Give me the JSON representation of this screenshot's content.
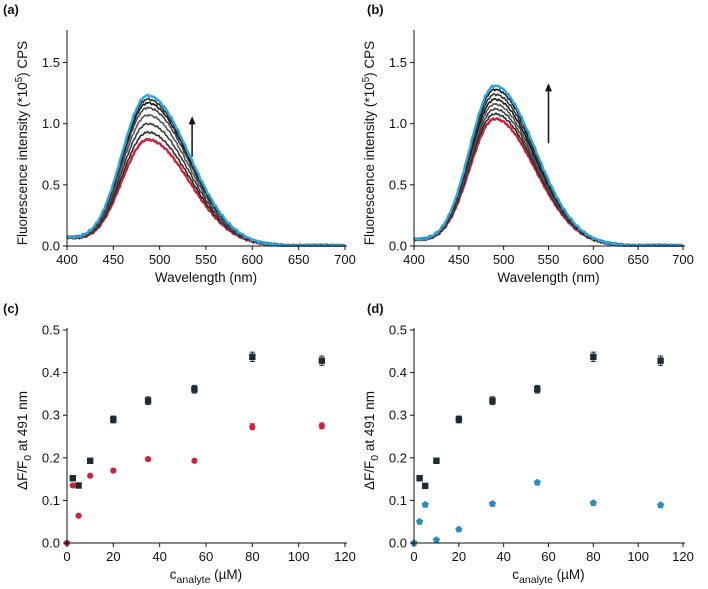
{
  "chart_data": [
    {
      "panel": "(a)",
      "type": "line",
      "xlabel": "Wavelength (nm)",
      "ylabel": "Fluorescence intensity (*10^5) CPS",
      "ylabel_parts": {
        "pre": "Fluorescence intensity (*10",
        "sup": "5",
        "post": ") CPS"
      },
      "xlim": [
        400,
        700
      ],
      "ylim": [
        0,
        1.75
      ],
      "xticks": [
        400,
        450,
        500,
        550,
        600,
        650,
        700
      ],
      "yticks": [
        0.0,
        0.5,
        1.0,
        1.5
      ],
      "ytick_labels": [
        "0.0",
        "0.5",
        "1.0",
        "1.5"
      ],
      "arrow": {
        "x": 535,
        "y_from": 0.73,
        "y_to": 1.06,
        "direction": "up"
      },
      "curve_shape": {
        "peak_x": 487,
        "sigma_left": 28,
        "sigma_right": 45,
        "baseline_400": 0.07,
        "baseline_430": 0.03
      },
      "series": [
        {
          "name": "initial",
          "color": "#d21f3c",
          "peak": 0.87
        },
        {
          "name": "step 1",
          "color": "#2b2b2b",
          "peak": 0.93
        },
        {
          "name": "step 2",
          "color": "#3d3d3d",
          "peak": 1.0
        },
        {
          "name": "step 3",
          "color": "#555555",
          "peak": 1.07
        },
        {
          "name": "step 4",
          "color": "#444444",
          "peak": 1.13
        },
        {
          "name": "step 5",
          "color": "#1a1a1a",
          "peak": 1.17
        },
        {
          "name": "step 6",
          "color": "#2e2e2e",
          "peak": 1.2
        },
        {
          "name": "final",
          "color": "#2aa6de",
          "peak": 1.23
        }
      ]
    },
    {
      "panel": "(b)",
      "type": "line",
      "xlabel": "Wavelength (nm)",
      "ylabel": "Fluorescence intensity (*10^5) CPS",
      "ylabel_parts": {
        "pre": "Fluorescence intensity (*10",
        "sup": "5",
        "post": ") CPS"
      },
      "xlim": [
        400,
        700
      ],
      "ylim": [
        0,
        1.75
      ],
      "xticks": [
        400,
        450,
        500,
        550,
        600,
        650,
        700
      ],
      "yticks": [
        0.0,
        0.5,
        1.0,
        1.5
      ],
      "ytick_labels": [
        "0.0",
        "0.5",
        "1.0",
        "1.5"
      ],
      "arrow": {
        "x": 550,
        "y_from": 0.84,
        "y_to": 1.33,
        "direction": "up"
      },
      "curve_shape": {
        "peak_x": 490,
        "sigma_left": 28,
        "sigma_right": 45,
        "baseline_400": 0.05,
        "baseline_430": 0.03
      },
      "series": [
        {
          "name": "initial",
          "color": "#d21f3c",
          "peak": 1.04
        },
        {
          "name": "step 1",
          "color": "#2b2b2b",
          "peak": 1.08
        },
        {
          "name": "step 2",
          "color": "#444444",
          "peak": 1.12
        },
        {
          "name": "step 3",
          "color": "#555555",
          "peak": 1.16
        },
        {
          "name": "step 4",
          "color": "#1a1a1a",
          "peak": 1.2
        },
        {
          "name": "step 5",
          "color": "#333333",
          "peak": 1.24
        },
        {
          "name": "step 6",
          "color": "#1a1a1a",
          "peak": 1.28
        },
        {
          "name": "final",
          "color": "#2aa6de",
          "peak": 1.31
        }
      ]
    },
    {
      "panel": "(c)",
      "type": "scatter",
      "xlabel": "c_analyte (µM)",
      "xlabel_parts": {
        "pre": "c",
        "sub": "analyte",
        "post": " (µM)"
      },
      "ylabel": "ΔF/F0 at 491 nm",
      "ylabel_parts": {
        "pre": "ΔF/F",
        "sub": "0",
        "post": " at 491 nm"
      },
      "xlim": [
        0,
        120
      ],
      "ylim": [
        0,
        0.5
      ],
      "xticks": [
        0,
        20,
        40,
        60,
        80,
        100,
        120
      ],
      "yticks": [
        0.0,
        0.1,
        0.2,
        0.3,
        0.4,
        0.5
      ],
      "ytick_labels": [
        "0.0",
        "0.1",
        "0.2",
        "0.3",
        "0.4",
        "0.5"
      ],
      "series": [
        {
          "name": "black squares",
          "marker": "square",
          "color": "#1b2a33",
          "x": [
            2.5,
            5,
            10,
            20,
            35,
            55,
            80,
            110
          ],
          "y": [
            0.152,
            0.135,
            0.193,
            0.29,
            0.334,
            0.361,
            0.437,
            0.428
          ],
          "err": [
            0,
            0,
            0,
            0.008,
            0.009,
            0.009,
            0.011,
            0.011
          ]
        },
        {
          "name": "red circles",
          "marker": "circle",
          "color": "#d21f3c",
          "x": [
            0,
            2.5,
            5,
            10,
            20,
            35,
            55,
            80,
            110
          ],
          "y": [
            0.0,
            0.135,
            0.064,
            0.158,
            0.17,
            0.197,
            0.193,
            0.273,
            0.275
          ],
          "err": [
            0,
            0,
            0,
            0,
            0,
            0.004,
            0.004,
            0.007,
            0.007
          ]
        }
      ]
    },
    {
      "panel": "(d)",
      "type": "scatter",
      "xlabel": "c_analyte (µM)",
      "xlabel_parts": {
        "pre": "c",
        "sub": "analyte",
        "post": " (µM)"
      },
      "ylabel": "ΔF/F0 at 491 nm",
      "ylabel_parts": {
        "pre": "ΔF/F",
        "sub": "0",
        "post": " at 491 nm"
      },
      "xlim": [
        0,
        120
      ],
      "ylim": [
        0,
        0.5
      ],
      "xticks": [
        0,
        20,
        40,
        60,
        80,
        100,
        120
      ],
      "yticks": [
        0.0,
        0.1,
        0.2,
        0.3,
        0.4,
        0.5
      ],
      "ytick_labels": [
        "0.0",
        "0.1",
        "0.2",
        "0.3",
        "0.4",
        "0.5"
      ],
      "series": [
        {
          "name": "black squares",
          "marker": "square",
          "color": "#1b2a33",
          "x": [
            2.5,
            5,
            10,
            20,
            35,
            55,
            80,
            110
          ],
          "y": [
            0.152,
            0.134,
            0.193,
            0.29,
            0.334,
            0.361,
            0.437,
            0.428
          ],
          "err": [
            0,
            0,
            0,
            0.008,
            0.009,
            0.009,
            0.011,
            0.011
          ]
        },
        {
          "name": "blue pentagons",
          "marker": "pentagon",
          "color": "#2b8fbe",
          "x": [
            0,
            2.5,
            5,
            10,
            20,
            35,
            55,
            80,
            110
          ],
          "y": [
            0.0,
            0.05,
            0.09,
            0.007,
            0.032,
            0.092,
            0.142,
            0.094,
            0.089
          ],
          "err": [
            0,
            0,
            0,
            0,
            0,
            0,
            0,
            0,
            0
          ]
        }
      ]
    }
  ]
}
